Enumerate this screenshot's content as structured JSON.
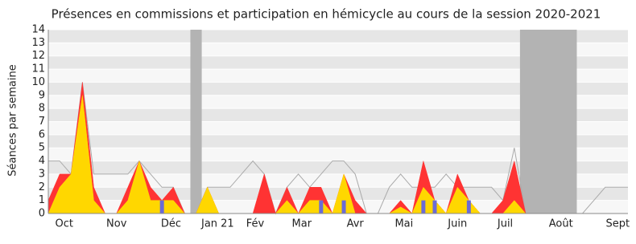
{
  "chart_data": {
    "type": "area",
    "title": "Présences en commissions et participation en hémicycle au cours de la session 2020-2021",
    "y_label": "Séances par semaine",
    "x": [
      0,
      1,
      2,
      3,
      4,
      5,
      6,
      7,
      8,
      9,
      10,
      11,
      12,
      13,
      14,
      15,
      16,
      17,
      18,
      19,
      20,
      21,
      22,
      23,
      24,
      25,
      26,
      27,
      28,
      29,
      30,
      31,
      32,
      33,
      34,
      35,
      36,
      37,
      38,
      39,
      40,
      41,
      42,
      43,
      44,
      45,
      46,
      47,
      48,
      49,
      50,
      51
    ],
    "xlim": [
      0,
      51
    ],
    "xticks": [
      {
        "value": 1.4,
        "label": "Oct"
      },
      {
        "value": 6.0,
        "label": "Nov"
      },
      {
        "value": 10.8,
        "label": "Déc"
      },
      {
        "value": 14.9,
        "label": "Jan 21"
      },
      {
        "value": 18.2,
        "label": "Fév"
      },
      {
        "value": 22.3,
        "label": "Mar"
      },
      {
        "value": 27.0,
        "label": "Avr"
      },
      {
        "value": 31.3,
        "label": "Mai"
      },
      {
        "value": 36.0,
        "label": "Juin"
      },
      {
        "value": 40.2,
        "label": "Juil"
      },
      {
        "value": 45.1,
        "label": "Août"
      },
      {
        "value": 50.1,
        "label": "Sept"
      }
    ],
    "ylim": [
      0,
      14
    ],
    "yticks": [
      0,
      1,
      2,
      3,
      4,
      5,
      6,
      7,
      8,
      9,
      10,
      11,
      12,
      13,
      14
    ],
    "shaded_ranges": [
      [
        12.5,
        13.5
      ],
      [
        41.5,
        46.5
      ]
    ],
    "shade_color": "#b3b3b3",
    "series": [
      {
        "style": "line",
        "color": "#aaaaaa",
        "values": [
          4,
          4,
          3,
          10,
          3,
          3,
          3,
          3,
          4,
          3,
          2,
          2,
          0,
          0,
          2,
          2,
          2,
          3,
          4,
          3,
          0,
          2,
          3,
          2,
          3,
          4,
          4,
          3,
          0,
          0,
          2,
          3,
          2,
          2,
          2,
          3,
          2,
          2,
          2,
          2,
          1,
          5,
          0,
          0,
          0,
          0,
          0,
          0,
          1,
          2,
          2,
          2
        ]
      },
      {
        "style": "area",
        "color": "#ff3333",
        "values": [
          1,
          3,
          3,
          10,
          2,
          0,
          0,
          2,
          4,
          2,
          1,
          2,
          0,
          0,
          2,
          0,
          0,
          0,
          0,
          3,
          0,
          2,
          0,
          2,
          2,
          0,
          3,
          1,
          0,
          0,
          0,
          1,
          0,
          4,
          1,
          0,
          3,
          1,
          0,
          0,
          1,
          4,
          0,
          0,
          0,
          0,
          0,
          0,
          0,
          0,
          0,
          0
        ]
      },
      {
        "style": "area",
        "color": "#ffd700",
        "values": [
          0,
          2,
          3,
          9,
          1,
          0,
          0,
          1,
          4,
          1,
          1,
          1,
          0,
          0,
          2,
          0,
          0,
          0,
          0,
          0,
          0,
          1,
          0,
          1,
          1,
          0,
          3,
          0,
          0,
          0,
          0,
          0.5,
          0,
          2,
          1,
          0,
          2,
          1,
          0,
          0,
          0,
          1,
          0,
          0,
          0,
          0,
          0,
          0,
          0,
          0,
          0,
          0
        ]
      },
      {
        "style": "bar",
        "color": "#6b6bd6",
        "values": [
          null,
          null,
          null,
          null,
          null,
          null,
          null,
          null,
          null,
          null,
          1,
          null,
          null,
          null,
          null,
          null,
          null,
          null,
          null,
          null,
          null,
          null,
          null,
          null,
          1,
          null,
          1,
          null,
          null,
          null,
          null,
          null,
          null,
          1,
          1,
          null,
          null,
          1,
          null,
          null,
          null,
          null,
          null,
          null,
          null,
          null,
          null,
          null,
          null,
          null,
          null,
          null
        ]
      }
    ]
  }
}
